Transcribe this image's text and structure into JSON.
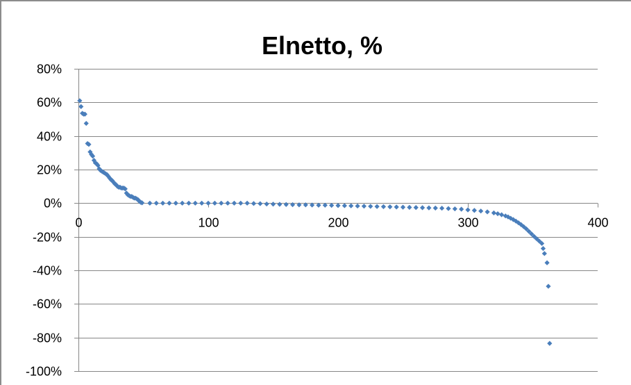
{
  "chart_data": {
    "type": "scatter",
    "title": "Elnetto, %",
    "xlabel": "",
    "ylabel": "",
    "xlim": [
      0,
      400
    ],
    "ylim": [
      -1.0,
      0.8
    ],
    "x_ticks": [
      0,
      100,
      200,
      300,
      400
    ],
    "x_tick_labels": [
      "0",
      "100",
      "200",
      "300",
      "400"
    ],
    "y_ticks": [
      0.8,
      0.6,
      0.4,
      0.2,
      0.0,
      -0.2,
      -0.4,
      -0.6,
      -0.8,
      -1.0
    ],
    "y_tick_labels": [
      "80%",
      "60%",
      "40%",
      "20%",
      "0%",
      "-20%",
      "-40%",
      "-60%",
      "-80%",
      "-100%"
    ],
    "grid": {
      "horizontal": true,
      "vertical": false
    },
    "legend": "none",
    "marker": "diamond",
    "color": "#4a7ebb",
    "series": [
      {
        "points": [
          [
            1,
            0.61
          ],
          [
            2,
            0.575
          ],
          [
            3,
            0.535
          ],
          [
            4,
            0.53
          ],
          [
            5,
            0.53
          ],
          [
            6,
            0.475
          ],
          [
            7,
            0.355
          ],
          [
            8,
            0.35
          ],
          [
            9,
            0.305
          ],
          [
            10,
            0.29
          ],
          [
            11,
            0.28
          ],
          [
            12,
            0.255
          ],
          [
            13,
            0.24
          ],
          [
            14,
            0.235
          ],
          [
            15,
            0.225
          ],
          [
            16,
            0.205
          ],
          [
            17,
            0.195
          ],
          [
            18,
            0.19
          ],
          [
            19,
            0.185
          ],
          [
            20,
            0.18
          ],
          [
            21,
            0.175
          ],
          [
            22,
            0.17
          ],
          [
            23,
            0.16
          ],
          [
            24,
            0.15
          ],
          [
            25,
            0.14
          ],
          [
            26,
            0.135
          ],
          [
            27,
            0.125
          ],
          [
            28,
            0.115
          ],
          [
            29,
            0.11
          ],
          [
            30,
            0.1
          ],
          [
            31,
            0.095
          ],
          [
            32,
            0.095
          ],
          [
            33,
            0.09
          ],
          [
            34,
            0.09
          ],
          [
            35,
            0.09
          ],
          [
            36,
            0.085
          ],
          [
            37,
            0.06
          ],
          [
            38,
            0.05
          ],
          [
            39,
            0.045
          ],
          [
            40,
            0.04
          ],
          [
            41,
            0.04
          ],
          [
            42,
            0.035
          ],
          [
            43,
            0.03
          ],
          [
            44,
            0.03
          ],
          [
            45,
            0.025
          ],
          [
            46,
            0.02
          ],
          [
            47,
            0.01
          ],
          [
            48,
            0.005
          ],
          [
            49,
            0.002
          ],
          [
            55,
            0.0
          ],
          [
            60,
            0.0
          ],
          [
            65,
            0.0
          ],
          [
            70,
            0.0
          ],
          [
            75,
            0.0
          ],
          [
            80,
            0.0
          ],
          [
            85,
            0.0
          ],
          [
            90,
            0.0
          ],
          [
            95,
            0.0
          ],
          [
            100,
            0.0
          ],
          [
            105,
            0.0
          ],
          [
            110,
            0.0
          ],
          [
            115,
            0.0
          ],
          [
            120,
            0.0
          ],
          [
            125,
            0.0
          ],
          [
            130,
            0.0
          ],
          [
            135,
            -0.002
          ],
          [
            140,
            -0.003
          ],
          [
            145,
            -0.005
          ],
          [
            150,
            -0.006
          ],
          [
            155,
            -0.007
          ],
          [
            160,
            -0.008
          ],
          [
            165,
            -0.009
          ],
          [
            170,
            -0.01
          ],
          [
            175,
            -0.01
          ],
          [
            180,
            -0.011
          ],
          [
            185,
            -0.012
          ],
          [
            190,
            -0.012
          ],
          [
            195,
            -0.013
          ],
          [
            200,
            -0.014
          ],
          [
            205,
            -0.015
          ],
          [
            210,
            -0.016
          ],
          [
            215,
            -0.017
          ],
          [
            220,
            -0.018
          ],
          [
            225,
            -0.019
          ],
          [
            230,
            -0.02
          ],
          [
            235,
            -0.021
          ],
          [
            240,
            -0.022
          ],
          [
            245,
            -0.023
          ],
          [
            250,
            -0.024
          ],
          [
            255,
            -0.025
          ],
          [
            260,
            -0.026
          ],
          [
            265,
            -0.027
          ],
          [
            270,
            -0.028
          ],
          [
            275,
            -0.029
          ],
          [
            280,
            -0.03
          ],
          [
            285,
            -0.032
          ],
          [
            290,
            -0.034
          ],
          [
            295,
            -0.036
          ],
          [
            300,
            -0.04
          ],
          [
            305,
            -0.043
          ],
          [
            310,
            -0.047
          ],
          [
            315,
            -0.052
          ],
          [
            320,
            -0.058
          ],
          [
            323,
            -0.063
          ],
          [
            326,
            -0.069
          ],
          [
            329,
            -0.076
          ],
          [
            331,
            -0.082
          ],
          [
            333,
            -0.09
          ],
          [
            335,
            -0.098
          ],
          [
            337,
            -0.107
          ],
          [
            339,
            -0.117
          ],
          [
            341,
            -0.128
          ],
          [
            343,
            -0.14
          ],
          [
            345,
            -0.153
          ],
          [
            347,
            -0.168
          ],
          [
            349,
            -0.183
          ],
          [
            351,
            -0.198
          ],
          [
            353,
            -0.212
          ],
          [
            355,
            -0.226
          ],
          [
            357,
            -0.24
          ],
          [
            358,
            -0.27
          ],
          [
            359,
            -0.3
          ],
          [
            361,
            -0.355
          ],
          [
            362,
            -0.495
          ],
          [
            363,
            -0.835
          ]
        ]
      }
    ]
  }
}
